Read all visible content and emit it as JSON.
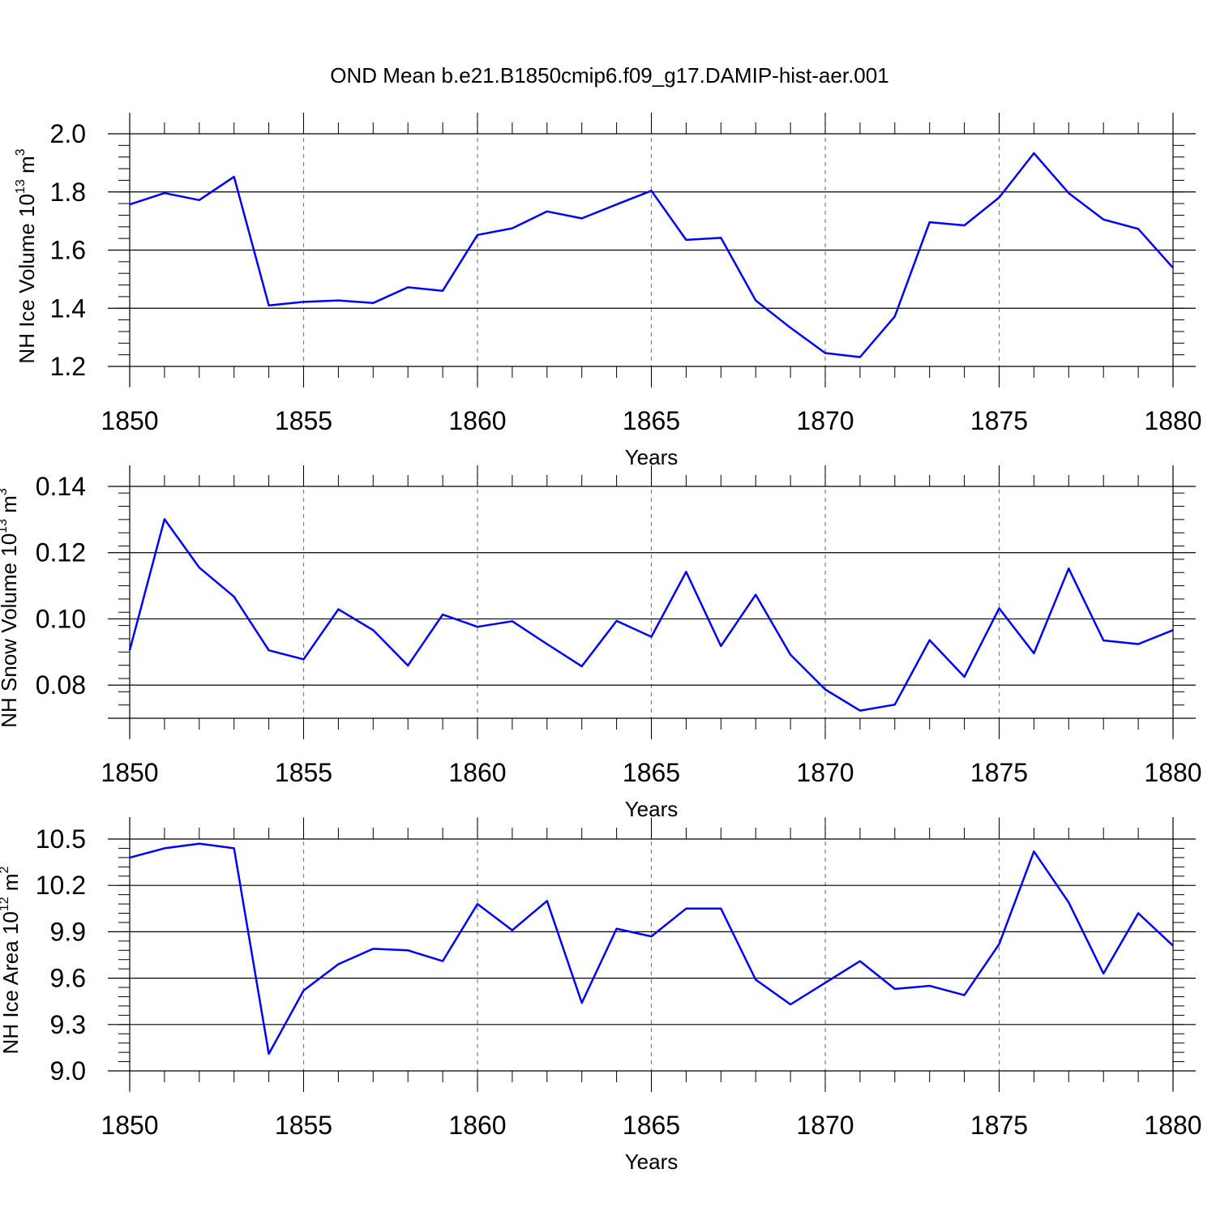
{
  "figure": {
    "title": "OND Mean b.e21.B1850cmip6.f09_g17.DAMIP-hist-aer.001"
  },
  "colors": {
    "line": "#0000ff",
    "axis": "#000000",
    "grid": "#808080"
  },
  "chart_data": [
    {
      "type": "line",
      "ylabel": {
        "base": "NH Ice Volume 10",
        "exp": "13",
        "unit": " m",
        "unit_exp": "3"
      },
      "xlabel": "Years",
      "xlim": [
        1850,
        1880
      ],
      "ylim": [
        1.2,
        2.0
      ],
      "y_ticks": [
        1.2,
        1.4,
        1.6,
        1.8,
        2.0
      ],
      "y_tick_labels": [
        "1.2",
        "1.4",
        "1.6",
        "1.8",
        "2.0"
      ],
      "x_ticks": [
        1850,
        1855,
        1860,
        1865,
        1870,
        1875,
        1880
      ],
      "x_tick_labels": [
        "1850",
        "1855",
        "1860",
        "1865",
        "1870",
        "1875",
        "1880"
      ],
      "grid": "vertical dashed",
      "x": [
        1850,
        1851,
        1852,
        1853,
        1854,
        1855,
        1856,
        1857,
        1858,
        1859,
        1860,
        1861,
        1862,
        1863,
        1864,
        1865,
        1866,
        1867,
        1868,
        1869,
        1870,
        1871,
        1872,
        1873,
        1874,
        1875,
        1876,
        1877,
        1878,
        1879,
        1880
      ],
      "values": [
        1.757,
        1.796,
        1.772,
        1.852,
        1.41,
        1.422,
        1.427,
        1.418,
        1.472,
        1.46,
        1.652,
        1.675,
        1.733,
        1.709,
        1.757,
        1.804,
        1.635,
        1.642,
        1.427,
        1.333,
        1.246,
        1.232,
        1.372,
        1.696,
        1.685,
        1.781,
        1.933,
        1.796,
        1.705,
        1.673,
        1.539
      ]
    },
    {
      "type": "line",
      "ylabel": {
        "base": "NH Snow Volume 10",
        "exp": "13",
        "unit": " m",
        "unit_exp": "3"
      },
      "xlabel": "Years",
      "xlim": [
        1850,
        1880
      ],
      "ylim": [
        0.07,
        0.14
      ],
      "y_ticks": [
        0.08,
        0.1,
        0.12,
        0.14
      ],
      "y_tick_labels": [
        "0.08",
        "0.10",
        "0.12",
        "0.14"
      ],
      "x_ticks": [
        1850,
        1855,
        1860,
        1865,
        1870,
        1875,
        1880
      ],
      "x_tick_labels": [
        "1850",
        "1855",
        "1860",
        "1865",
        "1870",
        "1875",
        "1880"
      ],
      "grid": "vertical dashed",
      "x": [
        1850,
        1851,
        1852,
        1853,
        1854,
        1855,
        1856,
        1857,
        1858,
        1859,
        1860,
        1861,
        1862,
        1863,
        1864,
        1865,
        1866,
        1867,
        1868,
        1869,
        1870,
        1871,
        1872,
        1873,
        1874,
        1875,
        1876,
        1877,
        1878,
        1879,
        1880
      ],
      "values": [
        0.0905,
        0.1301,
        0.1155,
        0.1067,
        0.0905,
        0.0878,
        0.1029,
        0.0966,
        0.0859,
        0.1013,
        0.0976,
        0.0993,
        0.0924,
        0.0857,
        0.0994,
        0.0946,
        0.1142,
        0.0918,
        0.1073,
        0.0892,
        0.0787,
        0.0723,
        0.0741,
        0.0936,
        0.0825,
        0.1032,
        0.0896,
        0.1152,
        0.0935,
        0.0924,
        0.0966
      ]
    },
    {
      "type": "line",
      "ylabel": {
        "base": "NH Ice Area 10",
        "exp": "12",
        "unit": " m",
        "unit_exp": "2"
      },
      "xlabel": "Years",
      "xlim": [
        1850,
        1880
      ],
      "ylim": [
        9.0,
        10.5
      ],
      "y_ticks": [
        9.0,
        9.3,
        9.6,
        9.9,
        10.2,
        10.5
      ],
      "y_tick_labels": [
        "9.0",
        "9.3",
        "9.6",
        "9.9",
        "10.2",
        "10.5"
      ],
      "x_ticks": [
        1850,
        1855,
        1860,
        1865,
        1870,
        1875,
        1880
      ],
      "x_tick_labels": [
        "1850",
        "1855",
        "1860",
        "1865",
        "1870",
        "1875",
        "1880"
      ],
      "grid": "vertical dashed",
      "x": [
        1850,
        1851,
        1852,
        1853,
        1854,
        1855,
        1856,
        1857,
        1858,
        1859,
        1860,
        1861,
        1862,
        1863,
        1864,
        1865,
        1866,
        1867,
        1868,
        1869,
        1870,
        1871,
        1872,
        1873,
        1874,
        1875,
        1876,
        1877,
        1878,
        1879,
        1880
      ],
      "values": [
        10.38,
        10.44,
        10.47,
        10.44,
        9.11,
        9.52,
        9.69,
        9.79,
        9.78,
        9.71,
        10.08,
        9.91,
        10.1,
        9.44,
        9.92,
        9.87,
        10.05,
        10.05,
        9.59,
        9.43,
        9.57,
        9.71,
        9.53,
        9.55,
        9.49,
        9.82,
        10.42,
        10.09,
        9.63,
        10.02,
        9.81
      ]
    }
  ]
}
